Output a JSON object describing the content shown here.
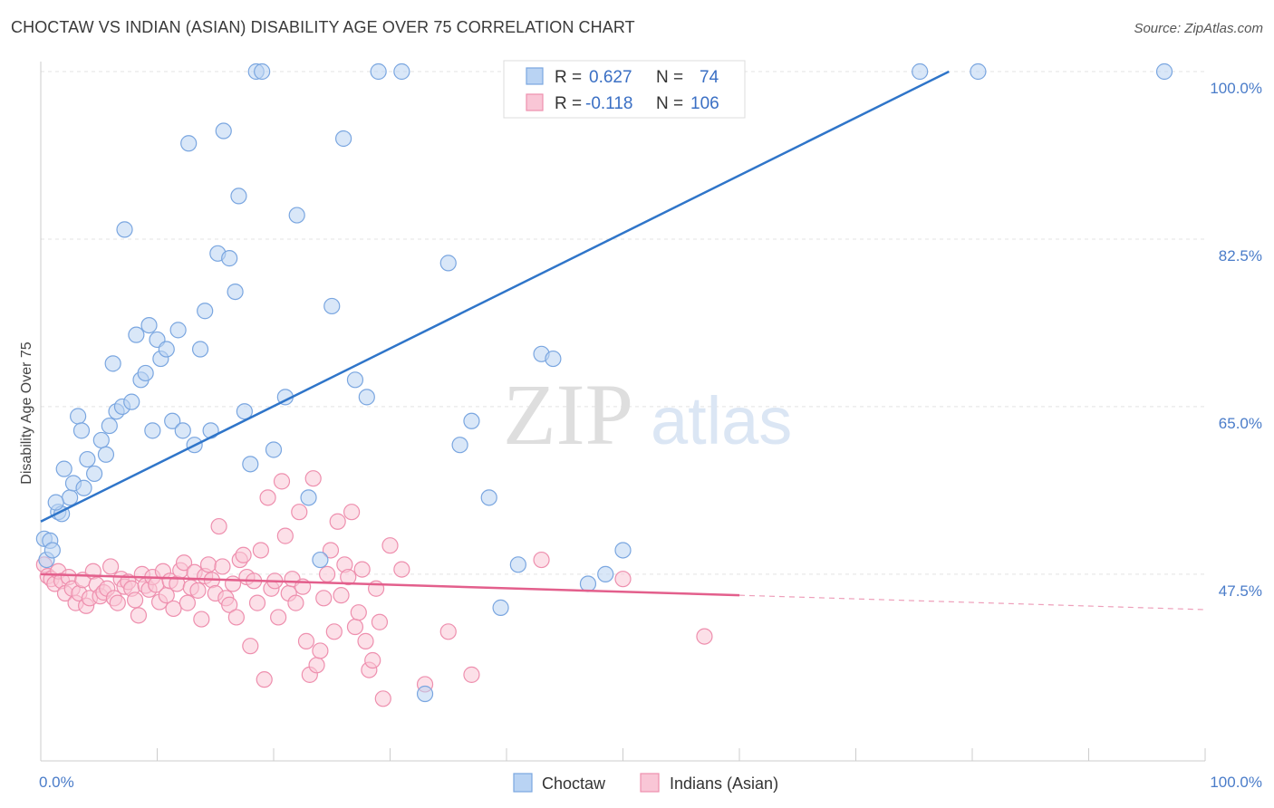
{
  "header": {
    "title": "CHOCTAW VS INDIAN (ASIAN) DISABILITY AGE OVER 75 CORRELATION CHART",
    "source": "Source: ZipAtlas.com"
  },
  "watermark": {
    "zip": "ZIP",
    "atlas": "atlas"
  },
  "colors": {
    "choctaw_fill": "#b9d3f3",
    "choctaw_stroke": "#7aa6e0",
    "choctaw_line": "#2f75c9",
    "indian_fill": "#f9c6d6",
    "indian_stroke": "#ee8fae",
    "indian_line": "#e35f8c",
    "tick_text": "#4a7cc9",
    "grid": "#e3e3e3"
  },
  "legend": {
    "rows": [
      {
        "r_label": "R =",
        "r_value": "0.627",
        "n_label": "N =",
        "n_value": "74"
      },
      {
        "r_label": "R =",
        "r_value": "-0.118",
        "n_label": "N =",
        "n_value": "106"
      }
    ]
  },
  "chart_data": {
    "type": "scatter",
    "title": "CHOCTAW VS INDIAN (ASIAN) DISABILITY AGE OVER 75 CORRELATION CHART",
    "xlabel": "",
    "ylabel": "Disability Age Over 75",
    "xlim": [
      0,
      100
    ],
    "ylim": [
      28,
      100
    ],
    "x_tick_labels": [
      "0.0%",
      "100.0%"
    ],
    "y_ticks": [
      47.5,
      65.0,
      82.5,
      100.0
    ],
    "y_tick_labels": [
      "47.5%",
      "65.0%",
      "82.5%",
      "100.0%"
    ],
    "grid": true,
    "legend_position": "top-center",
    "series": [
      {
        "name": "Choctaw",
        "color": "#b9d3f3",
        "trend": {
          "x": [
            0,
            78
          ],
          "y": [
            53.0,
            100.0
          ]
        },
        "points": [
          [
            0.3,
            51.2
          ],
          [
            0.8,
            51.0
          ],
          [
            1.5,
            54.0
          ],
          [
            1.8,
            53.8
          ],
          [
            2.0,
            58.5
          ],
          [
            2.5,
            55.5
          ],
          [
            2.8,
            57.0
          ],
          [
            3.2,
            64.0
          ],
          [
            3.5,
            62.5
          ],
          [
            3.7,
            56.5
          ],
          [
            4.0,
            59.5
          ],
          [
            4.6,
            58.0
          ],
          [
            5.2,
            61.5
          ],
          [
            5.6,
            60.0
          ],
          [
            5.9,
            63.0
          ],
          [
            6.2,
            69.5
          ],
          [
            6.5,
            64.5
          ],
          [
            7.0,
            65.0
          ],
          [
            7.2,
            83.5
          ],
          [
            7.8,
            65.5
          ],
          [
            8.2,
            72.5
          ],
          [
            8.6,
            67.8
          ],
          [
            9.0,
            68.5
          ],
          [
            9.3,
            73.5
          ],
          [
            9.6,
            62.5
          ],
          [
            10.0,
            72.0
          ],
          [
            10.3,
            70.0
          ],
          [
            10.8,
            71.0
          ],
          [
            11.3,
            63.5
          ],
          [
            11.8,
            73.0
          ],
          [
            12.2,
            62.5
          ],
          [
            12.7,
            92.5
          ],
          [
            13.2,
            61.0
          ],
          [
            13.7,
            71.0
          ],
          [
            14.1,
            75.0
          ],
          [
            14.6,
            62.5
          ],
          [
            15.2,
            81.0
          ],
          [
            15.7,
            93.8
          ],
          [
            16.2,
            80.5
          ],
          [
            16.7,
            77.0
          ],
          [
            17.0,
            87.0
          ],
          [
            17.5,
            64.5
          ],
          [
            18.0,
            59.0
          ],
          [
            18.5,
            100.0
          ],
          [
            19.0,
            100.0
          ],
          [
            20.0,
            60.5
          ],
          [
            21.0,
            66.0
          ],
          [
            22.0,
            85.0
          ],
          [
            23.0,
            55.5
          ],
          [
            24.0,
            49.0
          ],
          [
            25.0,
            75.5
          ],
          [
            26.0,
            93.0
          ],
          [
            27.0,
            67.8
          ],
          [
            28.0,
            66.0
          ],
          [
            29.0,
            100.0
          ],
          [
            31.0,
            100.0
          ],
          [
            33.0,
            35.0
          ],
          [
            35.0,
            80.0
          ],
          [
            36.0,
            61.0
          ],
          [
            37.0,
            63.5
          ],
          [
            38.5,
            55.5
          ],
          [
            39.5,
            44.0
          ],
          [
            41.0,
            48.5
          ],
          [
            43.0,
            70.5
          ],
          [
            44.0,
            70.0
          ],
          [
            47.0,
            46.5
          ],
          [
            48.5,
            47.5
          ],
          [
            50.0,
            50.0
          ],
          [
            75.5,
            100.0
          ],
          [
            80.5,
            100.0
          ],
          [
            96.5,
            100.0
          ],
          [
            0.5,
            49.0
          ],
          [
            1.0,
            50.0
          ],
          [
            1.3,
            55.0
          ]
        ]
      },
      {
        "name": "Indians (Asian)",
        "color": "#f9c6d6",
        "trend": {
          "x": [
            0,
            60
          ],
          "y": [
            47.5,
            45.3
          ]
        },
        "trend_dashed": {
          "x": [
            60,
            100
          ],
          "y": [
            45.3,
            43.8
          ]
        },
        "points": [
          [
            0.3,
            48.5
          ],
          [
            0.6,
            47.3
          ],
          [
            0.9,
            47.0
          ],
          [
            1.2,
            46.5
          ],
          [
            1.5,
            47.8
          ],
          [
            1.8,
            46.8
          ],
          [
            2.1,
            45.5
          ],
          [
            2.4,
            47.2
          ],
          [
            2.7,
            46.0
          ],
          [
            3.0,
            44.5
          ],
          [
            3.3,
            45.5
          ],
          [
            3.6,
            46.9
          ],
          [
            3.9,
            44.2
          ],
          [
            4.2,
            45.0
          ],
          [
            4.5,
            47.8
          ],
          [
            4.8,
            46.4
          ],
          [
            5.1,
            45.2
          ],
          [
            5.4,
            45.6
          ],
          [
            5.7,
            46.0
          ],
          [
            6.0,
            48.3
          ],
          [
            6.3,
            45.0
          ],
          [
            6.6,
            44.5
          ],
          [
            6.9,
            47.0
          ],
          [
            7.2,
            46.2
          ],
          [
            7.5,
            46.7
          ],
          [
            7.8,
            46.0
          ],
          [
            8.1,
            44.8
          ],
          [
            8.4,
            43.2
          ],
          [
            8.7,
            47.5
          ],
          [
            9.0,
            46.3
          ],
          [
            9.3,
            45.9
          ],
          [
            9.6,
            47.2
          ],
          [
            9.9,
            46.4
          ],
          [
            10.2,
            44.6
          ],
          [
            10.5,
            47.8
          ],
          [
            10.8,
            45.3
          ],
          [
            11.1,
            46.8
          ],
          [
            11.4,
            43.9
          ],
          [
            11.7,
            46.5
          ],
          [
            12.0,
            47.9
          ],
          [
            12.3,
            48.7
          ],
          [
            12.6,
            44.5
          ],
          [
            12.9,
            46.1
          ],
          [
            13.2,
            47.7
          ],
          [
            13.5,
            45.8
          ],
          [
            13.8,
            42.8
          ],
          [
            14.1,
            47.3
          ],
          [
            14.4,
            48.5
          ],
          [
            14.7,
            46.9
          ],
          [
            15.0,
            45.5
          ],
          [
            15.3,
            52.5
          ],
          [
            15.6,
            48.3
          ],
          [
            15.9,
            45.0
          ],
          [
            16.2,
            44.3
          ],
          [
            16.5,
            46.5
          ],
          [
            16.8,
            43.0
          ],
          [
            17.1,
            49.0
          ],
          [
            17.4,
            49.5
          ],
          [
            17.7,
            47.2
          ],
          [
            18.0,
            40.0
          ],
          [
            18.3,
            46.8
          ],
          [
            18.6,
            44.5
          ],
          [
            18.9,
            50.0
          ],
          [
            19.2,
            36.5
          ],
          [
            19.5,
            55.5
          ],
          [
            19.8,
            46.0
          ],
          [
            20.1,
            46.8
          ],
          [
            20.4,
            43.0
          ],
          [
            20.7,
            57.2
          ],
          [
            21.0,
            51.5
          ],
          [
            21.3,
            45.5
          ],
          [
            21.6,
            47.0
          ],
          [
            21.9,
            44.5
          ],
          [
            22.2,
            54.0
          ],
          [
            22.5,
            46.2
          ],
          [
            22.8,
            40.5
          ],
          [
            23.1,
            37.0
          ],
          [
            23.4,
            57.5
          ],
          [
            23.7,
            38.0
          ],
          [
            24.0,
            39.5
          ],
          [
            24.3,
            45.0
          ],
          [
            24.6,
            47.5
          ],
          [
            24.9,
            50.0
          ],
          [
            25.2,
            41.5
          ],
          [
            25.5,
            53.0
          ],
          [
            25.8,
            45.3
          ],
          [
            26.1,
            48.5
          ],
          [
            26.4,
            47.2
          ],
          [
            26.7,
            54.0
          ],
          [
            27.0,
            42.0
          ],
          [
            27.3,
            43.5
          ],
          [
            27.6,
            48.0
          ],
          [
            27.9,
            40.5
          ],
          [
            28.2,
            37.5
          ],
          [
            28.5,
            38.5
          ],
          [
            28.8,
            46.0
          ],
          [
            29.1,
            42.5
          ],
          [
            29.4,
            34.5
          ],
          [
            30.0,
            50.5
          ],
          [
            31.0,
            48.0
          ],
          [
            33.0,
            36.0
          ],
          [
            35.0,
            41.5
          ],
          [
            37.0,
            37.0
          ],
          [
            43.0,
            49.0
          ],
          [
            50.0,
            47.0
          ],
          [
            57.0,
            41.0
          ]
        ]
      }
    ]
  }
}
